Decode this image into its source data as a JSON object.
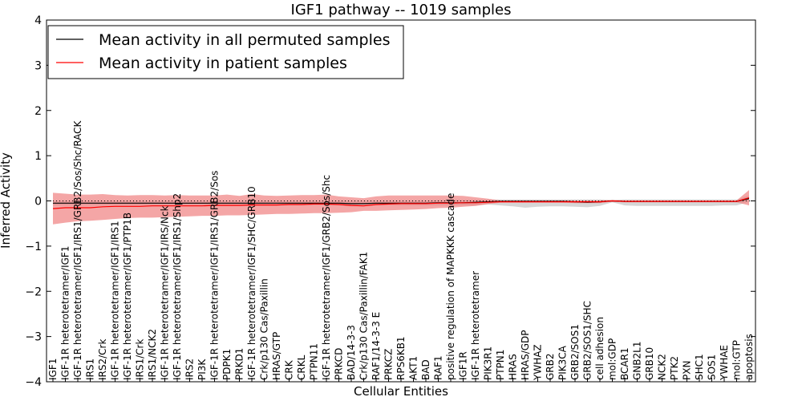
{
  "chart_data": {
    "type": "line",
    "title": "IGF1 pathway -- 1019 samples",
    "xlabel": "Cellular Entities",
    "ylabel": "Inferred Activity",
    "ylim": [
      -4,
      4
    ],
    "yticks": [
      -4,
      -3,
      -2,
      -1,
      0,
      1,
      2,
      3,
      4
    ],
    "ytick_labels": [
      "−4",
      "−3",
      "−2",
      "−1",
      "0",
      "1",
      "2",
      "3",
      "4"
    ],
    "reference_line": 0,
    "grid": false,
    "legend_position": "top-left",
    "categories": [
      "IGF1",
      "IGF-1R heterotetramer/IGF1",
      "IGF-1R heterotetramer/IGF1/IRS1/GRB2/Sos/Shc/RACK",
      "IRS1",
      "IRS2/Crk",
      "IGF-1R heterotetramer/IGF1/IRS1",
      "IGF-1R heterotetramer/IGF1/PTP1B",
      "IRS1/Crk",
      "IRS1/NCK2",
      "IGF-1R heterotetramer/IGF1/IRS/Nck",
      "IGF-1R heterotetramer/IGF1/IRS1/Shp2",
      "IRS2",
      "PI3K",
      "IGF-1R heterotetramer/IGF1/IRS1/GRB2/Sos",
      "PDPK1",
      "PRKD1",
      "IGF-1R heterotetramer/IGF1/SHC/GRB10",
      "Crk/p130 Cas/Paxillin",
      "HRAS/GTP",
      "CRK",
      "CRKL",
      "PTPN11",
      "IGF-1R heterotetramer/IGF1/GRB2/Sos/Shc",
      "PRKCD",
      "BAD/14-3-3",
      "Crk/p130 Cas/Paxillin/FAK1",
      "RAF1/14-3-3 E",
      "PRKCZ",
      "RPS6KB1",
      "AKT1",
      "BAD",
      "RAF1",
      "positive regulation of MAPKKK cascade",
      "IGF1R",
      "IGF-1R heterotetramer",
      "PIK3R1",
      "PTPN1",
      "HRAS",
      "HRAS/GDP",
      "YWHAZ",
      "GRB2",
      "PIK3CA",
      "GRB2/SOS1",
      "GRB2/SOS1/SHC",
      "cell adhesion",
      "mol:GDP",
      "BCAR1",
      "GNB2L1",
      "GRB10",
      "NCK2",
      "PTK2",
      "PXN",
      "SHC1",
      "SOS1",
      "YWHAE",
      "mol:GTP",
      "apoptosis"
    ],
    "series": [
      {
        "name": "Mean activity in all permuted samples",
        "color": "#000000",
        "band_color": "#c8c8c8",
        "values": [
          -0.05,
          -0.05,
          -0.05,
          -0.05,
          -0.05,
          -0.05,
          -0.05,
          -0.05,
          -0.05,
          -0.05,
          -0.05,
          -0.05,
          -0.05,
          -0.05,
          -0.05,
          -0.05,
          -0.05,
          -0.05,
          -0.05,
          -0.05,
          -0.05,
          -0.05,
          -0.05,
          -0.05,
          -0.06,
          -0.06,
          -0.05,
          -0.05,
          -0.05,
          -0.05,
          -0.05,
          -0.04,
          -0.04,
          -0.04,
          -0.03,
          -0.02,
          -0.01,
          -0.01,
          -0.01,
          -0.01,
          -0.01,
          -0.01,
          -0.02,
          -0.03,
          -0.02,
          0.0,
          -0.01,
          -0.01,
          -0.01,
          -0.01,
          -0.01,
          -0.01,
          -0.01,
          -0.01,
          -0.01,
          -0.01,
          0.05
        ],
        "band_low": [
          -0.1,
          -0.1,
          -0.1,
          -0.1,
          -0.1,
          -0.1,
          -0.1,
          -0.1,
          -0.1,
          -0.1,
          -0.1,
          -0.1,
          -0.1,
          -0.1,
          -0.1,
          -0.1,
          -0.1,
          -0.1,
          -0.1,
          -0.1,
          -0.1,
          -0.1,
          -0.1,
          -0.1,
          -0.12,
          -0.12,
          -0.1,
          -0.1,
          -0.1,
          -0.1,
          -0.1,
          -0.1,
          -0.1,
          -0.1,
          -0.1,
          -0.08,
          -0.1,
          -0.12,
          -0.15,
          -0.13,
          -0.12,
          -0.12,
          -0.13,
          -0.14,
          -0.11,
          -0.03,
          -0.1,
          -0.11,
          -0.11,
          -0.11,
          -0.11,
          -0.11,
          -0.11,
          -0.11,
          -0.1,
          -0.1,
          -0.02
        ],
        "band_high": [
          0.0,
          0.0,
          0.0,
          0.0,
          0.0,
          0.0,
          0.0,
          0.0,
          0.0,
          0.0,
          0.0,
          0.0,
          0.0,
          0.0,
          0.0,
          0.0,
          0.0,
          0.0,
          0.0,
          0.0,
          0.0,
          0.0,
          0.0,
          0.0,
          0.0,
          0.0,
          0.0,
          0.0,
          0.0,
          0.0,
          0.0,
          0.02,
          0.02,
          0.02,
          0.02,
          0.03,
          0.03,
          0.03,
          0.03,
          0.03,
          0.03,
          0.03,
          0.03,
          0.03,
          0.03,
          0.02,
          0.03,
          0.03,
          0.03,
          0.03,
          0.03,
          0.03,
          0.03,
          0.03,
          0.03,
          0.03,
          0.12
        ]
      },
      {
        "name": "Mean activity in patient samples",
        "color": "#ff0000",
        "band_color": "#f08080",
        "values": [
          -0.17,
          -0.15,
          -0.15,
          -0.15,
          -0.13,
          -0.12,
          -0.12,
          -0.12,
          -0.11,
          -0.11,
          -0.11,
          -0.11,
          -0.11,
          -0.1,
          -0.1,
          -0.1,
          -0.09,
          -0.09,
          -0.09,
          -0.08,
          -0.08,
          -0.07,
          -0.07,
          -0.08,
          -0.1,
          -0.11,
          -0.08,
          -0.07,
          -0.06,
          -0.06,
          -0.06,
          -0.05,
          -0.05,
          -0.04,
          -0.04,
          -0.03,
          -0.02,
          -0.02,
          -0.02,
          -0.02,
          -0.02,
          -0.02,
          -0.02,
          -0.02,
          -0.02,
          0.0,
          -0.01,
          -0.01,
          -0.01,
          -0.01,
          -0.01,
          -0.01,
          -0.01,
          -0.01,
          -0.01,
          -0.01,
          0.07
        ],
        "band_low": [
          -0.52,
          -0.48,
          -0.45,
          -0.44,
          -0.42,
          -0.4,
          -0.38,
          -0.37,
          -0.37,
          -0.36,
          -0.35,
          -0.34,
          -0.33,
          -0.33,
          -0.32,
          -0.32,
          -0.31,
          -0.3,
          -0.29,
          -0.29,
          -0.28,
          -0.27,
          -0.27,
          -0.26,
          -0.25,
          -0.22,
          -0.22,
          -0.21,
          -0.2,
          -0.19,
          -0.18,
          -0.16,
          -0.15,
          -0.13,
          -0.11,
          -0.07,
          -0.04,
          -0.04,
          -0.04,
          -0.04,
          -0.04,
          -0.04,
          -0.05,
          -0.05,
          -0.05,
          -0.02,
          -0.03,
          -0.03,
          -0.03,
          -0.03,
          -0.03,
          -0.03,
          -0.03,
          -0.03,
          -0.03,
          -0.03,
          -0.1
        ],
        "band_high": [
          0.18,
          0.16,
          0.14,
          0.14,
          0.15,
          0.13,
          0.12,
          0.13,
          0.13,
          0.12,
          0.13,
          0.12,
          0.12,
          0.12,
          0.14,
          0.11,
          0.15,
          0.12,
          0.11,
          0.12,
          0.13,
          0.13,
          0.14,
          0.1,
          0.08,
          0.06,
          0.1,
          0.12,
          0.12,
          0.12,
          0.12,
          0.12,
          0.12,
          0.11,
          0.08,
          0.05,
          0.01,
          0.01,
          0.01,
          0.01,
          0.01,
          0.01,
          0.01,
          0.01,
          0.01,
          0.02,
          0.01,
          0.01,
          0.01,
          0.01,
          0.01,
          0.01,
          0.01,
          0.01,
          0.01,
          0.01,
          0.24
        ]
      }
    ]
  }
}
